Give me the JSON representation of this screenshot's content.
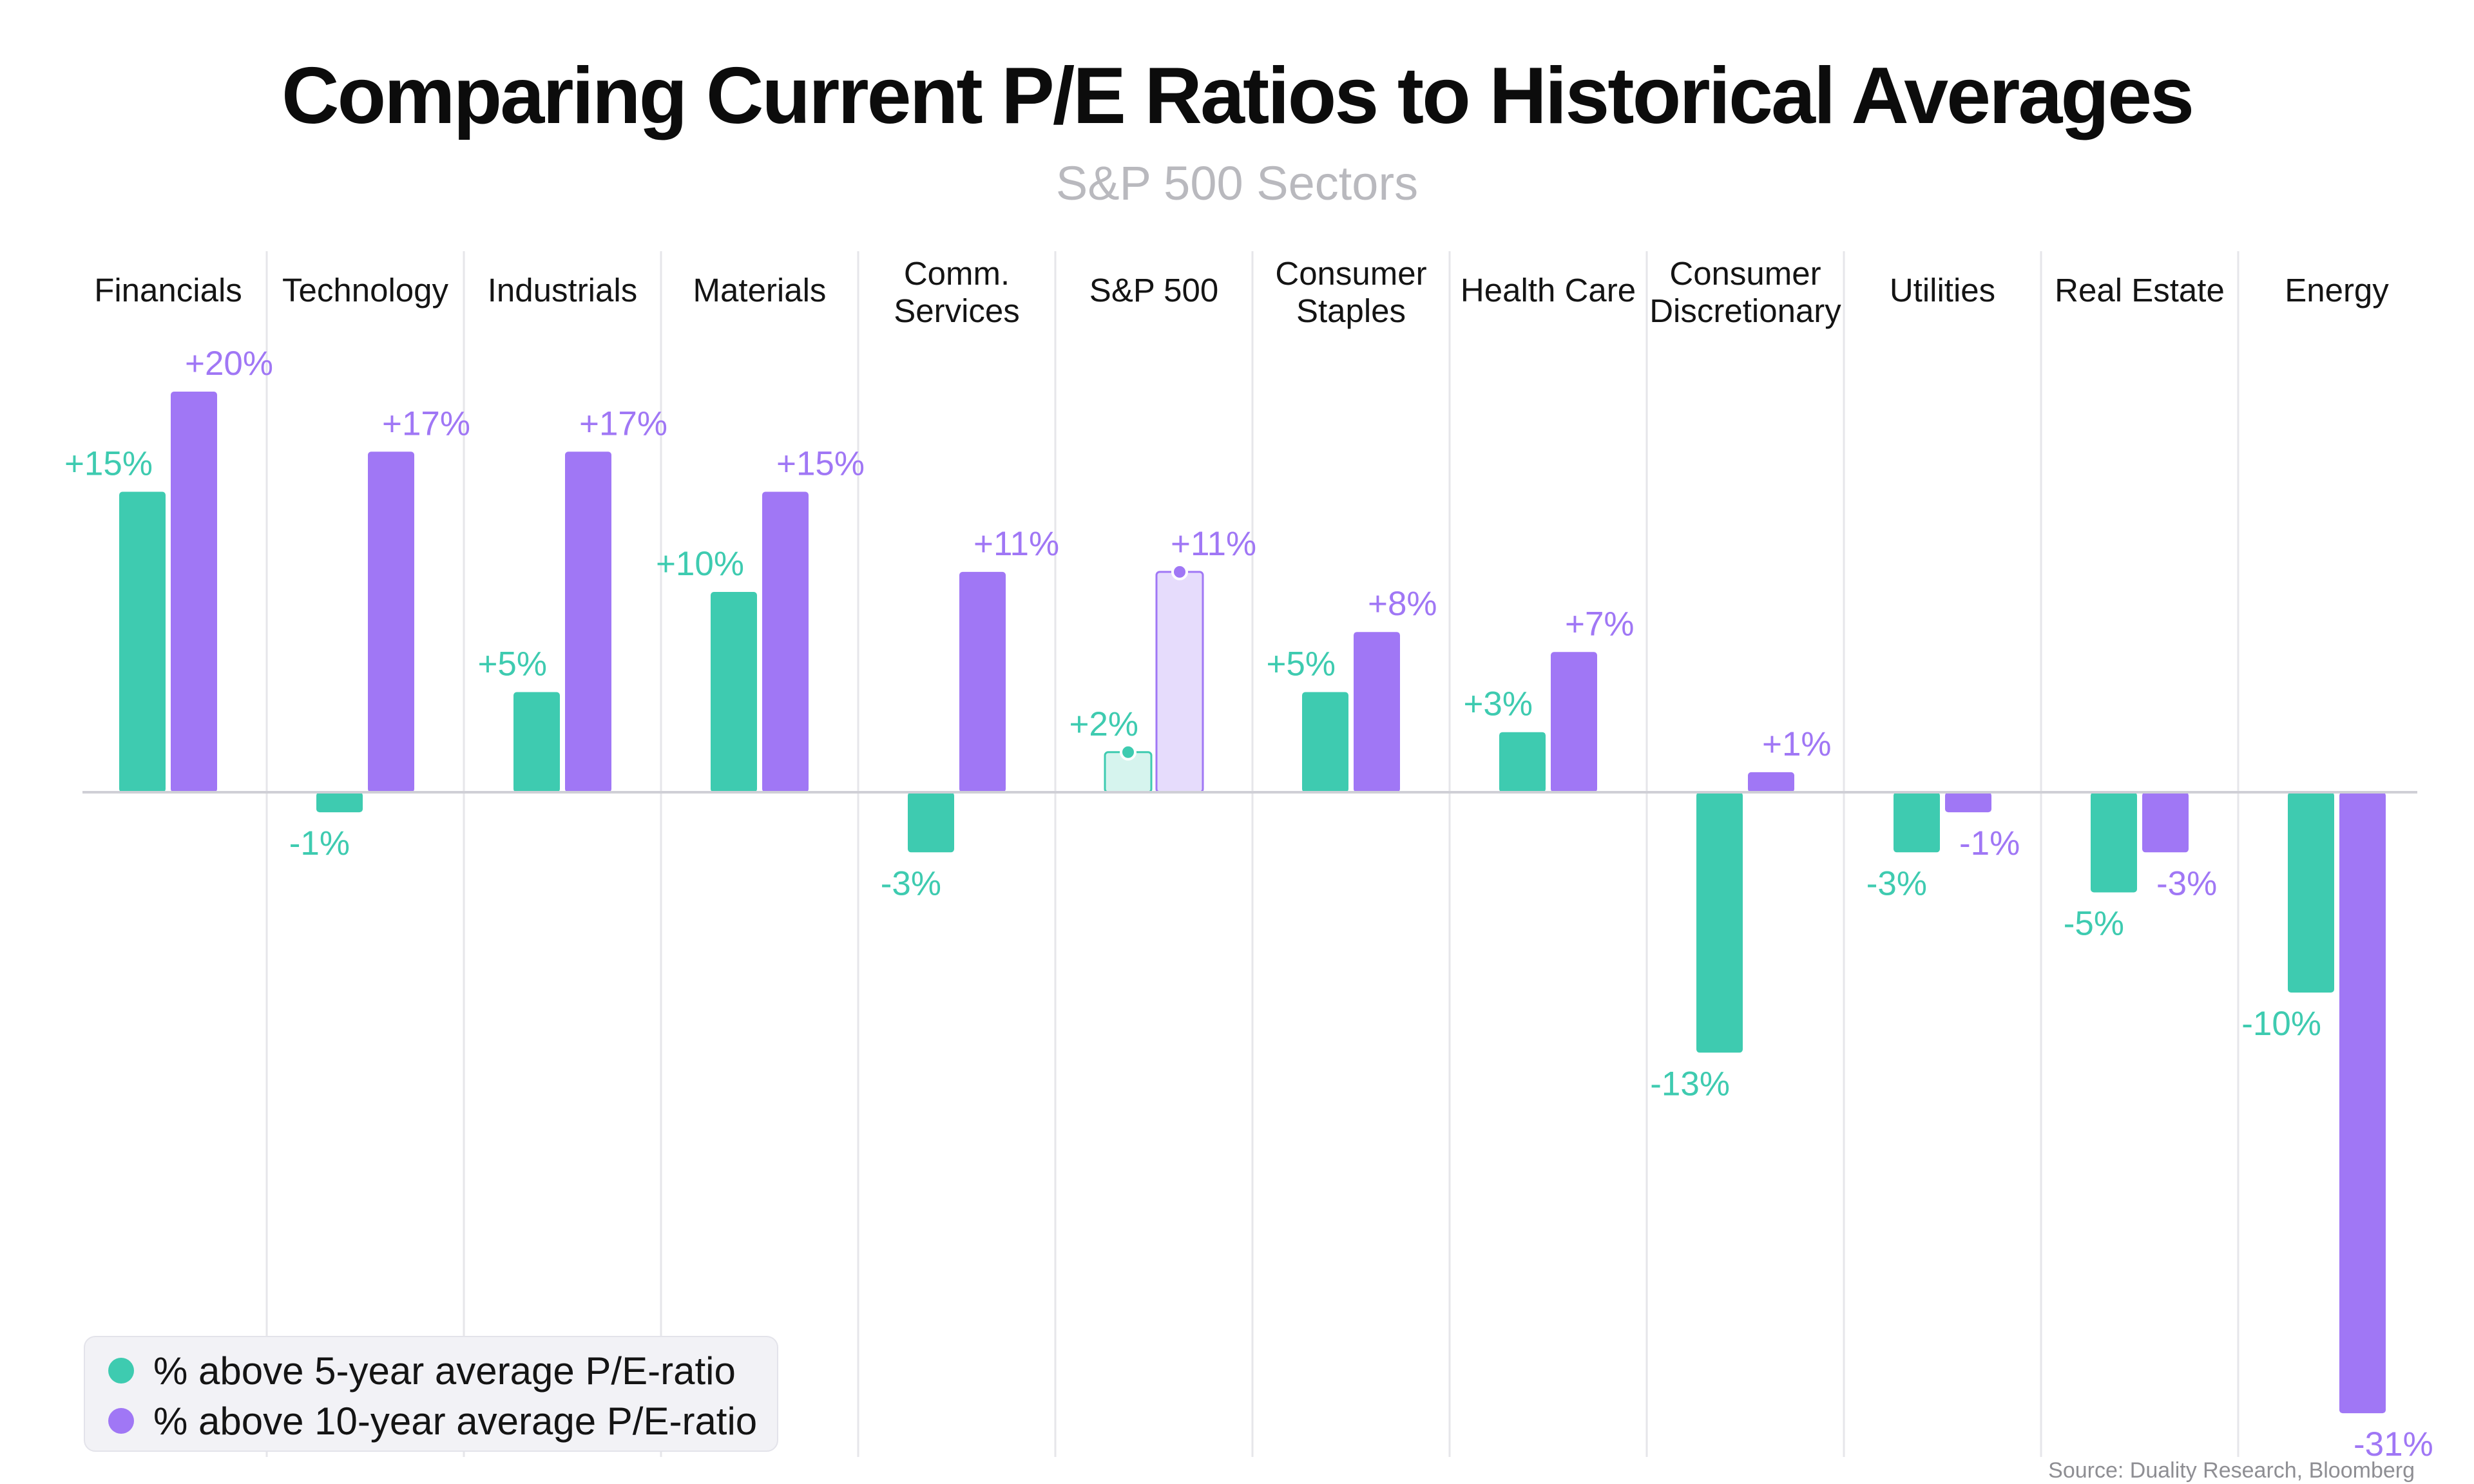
{
  "colors": {
    "five_year": "#3ecbb0",
    "ten_year": "#a077f5",
    "five_year_highlight_fill": "#d6f4ee",
    "ten_year_highlight_fill": "#e6dcfc",
    "divider": "#e6e6ea",
    "zero_line": "#cfcfd6"
  },
  "chart_data": {
    "type": "bar",
    "title": "Comparing Current P/E Ratios to Historical Averages",
    "subtitle": "S&P 500 Sectors",
    "categories": [
      "Financials",
      "Technology",
      "Industrials",
      "Materials",
      "Comm. Services",
      "S&P 500",
      "Consumer Staples",
      "Health Care",
      "Consumer Discretionary",
      "Utilities",
      "Real Estate",
      "Energy"
    ],
    "category_lines": [
      [
        "Financials"
      ],
      [
        "Technology"
      ],
      [
        "Industrials"
      ],
      [
        "Materials"
      ],
      [
        "Comm.",
        "Services"
      ],
      [
        "S&P 500"
      ],
      [
        "Consumer",
        "Staples"
      ],
      [
        "Health Care"
      ],
      [
        "Consumer",
        "Discretionary"
      ],
      [
        "Utilities"
      ],
      [
        "Real Estate"
      ],
      [
        "Energy"
      ]
    ],
    "series": [
      {
        "name": "% above 5-year average P/E-ratio",
        "values": [
          15,
          -1,
          5,
          10,
          -3,
          2,
          5,
          3,
          -13,
          -3,
          -5,
          -10
        ],
        "labels": [
          "+15%",
          "-1%",
          "+5%",
          "+10%",
          "-3%",
          "+2%",
          "+5%",
          "+3%",
          "-13%",
          "-3%",
          "-5%",
          "-10%"
        ]
      },
      {
        "name": "% above 10-year average P/E-ratio",
        "values": [
          20,
          17,
          17,
          15,
          11,
          11,
          8,
          7,
          1,
          -1,
          -3,
          -31
        ],
        "labels": [
          "+20%",
          "+17%",
          "+17%",
          "+15%",
          "+11%",
          "+11%",
          "+8%",
          "+7%",
          "+1%",
          "-1%",
          "-3%",
          "-31%"
        ]
      }
    ],
    "highlight_category": "S&P 500",
    "ylim": [
      -31,
      20
    ],
    "grid": false,
    "legend_position": "bottom-left",
    "source": "Source: Duality Research, Bloomberg"
  }
}
